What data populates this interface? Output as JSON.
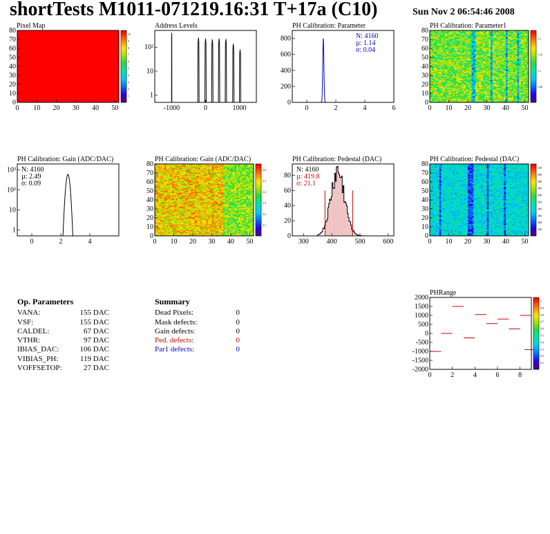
{
  "header": {
    "title": "shortTests M1011-071219.16:31 T+17a (C10)",
    "date": "Sun Nov  2 06:54:46 2008"
  },
  "chart_data": [
    {
      "id": "pixel-map",
      "type": "heatmap",
      "title": "Pixel Map",
      "xlim": [
        0,
        52
      ],
      "ylim": [
        0,
        80
      ],
      "xticks": [
        "0",
        "10",
        "20",
        "30",
        "40",
        "50"
      ],
      "yticks": [
        "0",
        "10",
        "20",
        "30",
        "40",
        "50",
        "60",
        "70",
        "80"
      ],
      "fill": "uniform",
      "value": 10,
      "colorbar_ticks": [
        "1",
        "2",
        "3",
        "4",
        "5",
        "6",
        "7",
        "8",
        "9",
        "10"
      ]
    },
    {
      "id": "address-levels",
      "type": "line",
      "title": "Address Levels",
      "xlim": [
        -1500,
        1500
      ],
      "ylog": true,
      "yrange": [
        0.5,
        500
      ],
      "xticks": [
        "-1000",
        "0",
        "1000"
      ],
      "yticks": [
        "1",
        "10",
        "10²"
      ],
      "peaks": [
        {
          "x": -1000,
          "height": 400,
          "width": 8
        },
        {
          "x": -210,
          "height": 250,
          "width": 40
        },
        {
          "x": 0,
          "height": 230,
          "width": 40
        },
        {
          "x": 200,
          "height": 210,
          "width": 40
        },
        {
          "x": 400,
          "height": 230,
          "width": 40
        },
        {
          "x": 600,
          "height": 220,
          "width": 40
        },
        {
          "x": 820,
          "height": 140,
          "width": 40
        },
        {
          "x": 1020,
          "height": 80,
          "width": 40
        }
      ]
    },
    {
      "id": "ph-calib-parameter",
      "type": "line",
      "title": "PH Calibration: Parameter",
      "xlim": [
        -1,
        6
      ],
      "ylim": [
        0,
        900
      ],
      "xticks": [
        "0",
        "2",
        "4",
        "6"
      ],
      "yticks": [
        "0",
        "200",
        "400",
        "600",
        "800"
      ],
      "gauss": {
        "mean": 1.14,
        "sigma": 0.04,
        "peak": 800
      },
      "line_color": "#0000cc",
      "stats": [
        {
          "label": "N: 4160",
          "color": "#0000cc"
        },
        {
          "label": "µ: 1.14",
          "color": "#0000cc"
        },
        {
          "label": "σ: 0.04",
          "color": "#0000cc"
        }
      ]
    },
    {
      "id": "ph-calib-parameter1",
      "type": "heatmap",
      "title": "PH Calibration: Parameter1",
      "xlim": [
        0,
        52
      ],
      "ylim": [
        0,
        80
      ],
      "xticks": [
        "0",
        "10",
        "20",
        "30",
        "40",
        "50"
      ],
      "yticks": [
        "0",
        "10",
        "20",
        "30",
        "40",
        "50",
        "60",
        "70",
        "80"
      ],
      "fill": "random",
      "palette_center": 0.62,
      "palette_spread": 0.18,
      "dark_columns": [
        22,
        23,
        32,
        40,
        46
      ],
      "colorbar_ticks": [
        "1.06",
        "1.1",
        "1.16",
        "1.2"
      ]
    },
    {
      "id": "ph-calib-gain-hist",
      "type": "line",
      "title": "PH Calibration: Gain (ADC/DAC)",
      "xlim": [
        -1,
        6
      ],
      "ylog": true,
      "yrange": [
        0.5,
        2000
      ],
      "xticks": [
        "0",
        "2",
        "4"
      ],
      "yticks": [
        "1",
        "10",
        "10²",
        "10³"
      ],
      "gauss": {
        "mean": 2.49,
        "sigma": 0.09,
        "peak": 600
      },
      "line_color": "#000000",
      "stats": [
        {
          "label": "N: 4160",
          "color": "#000000"
        },
        {
          "label": "µ: 2.49",
          "color": "#000000"
        },
        {
          "label": "σ: 0.09",
          "color": "#000000"
        }
      ]
    },
    {
      "id": "ph-calib-gain-map",
      "type": "heatmap",
      "title": "PH Calibration: Gain (ADC/DAC)",
      "xlim": [
        0,
        52
      ],
      "ylim": [
        0,
        80
      ],
      "xticks": [
        "0",
        "10",
        "20",
        "30",
        "40",
        "50"
      ],
      "yticks": [
        "0",
        "10",
        "20",
        "30",
        "40",
        "50",
        "60",
        "70",
        "80"
      ],
      "fill": "random",
      "palette_center": 0.72,
      "palette_spread": 0.16,
      "colorbar_ticks": [
        "2.1",
        "2.2",
        "2.3",
        "2.4",
        "2.5",
        "2.6"
      ]
    },
    {
      "id": "ph-calib-pedestal-hist",
      "type": "bar",
      "title": "PH Calibration: Pedestal (DAC)",
      "xlim": [
        260,
        620
      ],
      "ylim": [
        0,
        95
      ],
      "xticks": [
        "300",
        "400",
        "500",
        "600"
      ],
      "yticks": [
        "0",
        "20",
        "40",
        "60",
        "80"
      ],
      "gauss": {
        "mean": 419.8,
        "sigma": 21.1,
        "peak": 85
      },
      "cut_lines": [
        376,
        474
      ],
      "stats": [
        {
          "label": "N: 4160",
          "color": "#000000"
        },
        {
          "label": "µ: 419.8",
          "color": "#cc0000"
        },
        {
          "label": "σ: 21.1",
          "color": "#cc0000"
        }
      ]
    },
    {
      "id": "ph-calib-pedestal-map",
      "type": "heatmap",
      "title": "PH Calibration: Pedestal (DAC)",
      "xlim": [
        0,
        52
      ],
      "ylim": [
        0,
        80
      ],
      "xticks": [
        "0",
        "10",
        "20",
        "30",
        "40",
        "50"
      ],
      "yticks": [
        "0",
        "10",
        "20",
        "30",
        "40",
        "50",
        "60",
        "70",
        "80"
      ],
      "fill": "random",
      "palette_center": 0.38,
      "palette_spread": 0.12,
      "dark_columns": [
        5,
        20,
        21,
        22,
        30,
        39
      ],
      "colorbar_ticks": [
        "340",
        "360",
        "380",
        "400",
        "420",
        "440",
        "460",
        "480",
        "500",
        "520"
      ]
    },
    {
      "id": "phrange",
      "type": "scatter",
      "title": "PHRange",
      "xlim": [
        0,
        9
      ],
      "ylim": [
        -2000,
        2000
      ],
      "xticks": [
        "0",
        "2",
        "4",
        "6",
        "8"
      ],
      "yticks": [
        "-2000",
        "-1500",
        "-1000",
        "-500",
        "0",
        "500",
        "1000",
        "1500",
        "2000"
      ],
      "segments": [
        {
          "x": 0,
          "y": -1000
        },
        {
          "x": 1,
          "y": 0
        },
        {
          "x": 2,
          "y": 1500
        },
        {
          "x": 3,
          "y": -250
        },
        {
          "x": 4,
          "y": 1050
        },
        {
          "x": 5,
          "y": 550
        },
        {
          "x": 6,
          "y": 800
        },
        {
          "x": 7,
          "y": 250
        },
        {
          "x": 8,
          "y": 1000
        },
        {
          "x": 8.4,
          "y": -900
        }
      ],
      "colorbar_ticks": [
        "0.1",
        "0.2",
        "0.3",
        "0.4",
        "0.5",
        "0.6",
        "0.7",
        "0.8",
        "0.9",
        "1"
      ]
    }
  ],
  "op_parameters": {
    "heading": "Op. Parameters",
    "rows": [
      {
        "name": "VANA:",
        "value": "155 DAC"
      },
      {
        "name": "VSF:",
        "value": "155 DAC"
      },
      {
        "name": "CALDEL:",
        "value": "67 DAC"
      },
      {
        "name": "VTHR:",
        "value": "97 DAC"
      },
      {
        "name": "IBIAS_DAC:",
        "value": "106 DAC"
      },
      {
        "name": "VIBIAS_PH:",
        "value": "119 DAC"
      },
      {
        "name": "VOFFSETOP:",
        "value": "27 DAC"
      }
    ]
  },
  "summary": {
    "heading": "Summary",
    "rows": [
      {
        "name": "Dead Pixels:",
        "value": "0",
        "color": "#000000"
      },
      {
        "name": "Mask defects:",
        "value": "0",
        "color": "#000000"
      },
      {
        "name": "Gain defects:",
        "value": "0",
        "color": "#000000"
      },
      {
        "name": "Ped. defects:",
        "value": "0",
        "color": "#cc0000"
      },
      {
        "name": "Par1 defects:",
        "value": "0",
        "color": "#0000cc"
      }
    ]
  }
}
